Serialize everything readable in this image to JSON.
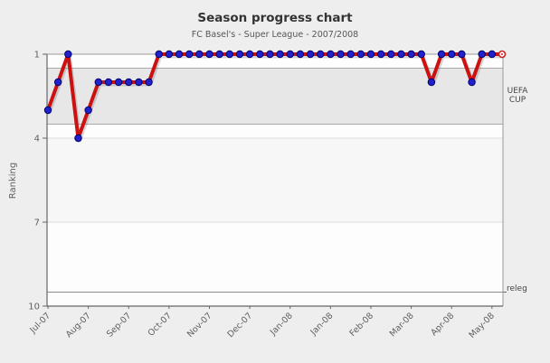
{
  "chart": {
    "title": "Season progress chart",
    "subtitle": "FC Basel's - Super League - 2007/2008",
    "y_axis_title": "Ranking",
    "zone_labels": {
      "uefa_line1": "UEFA",
      "uefa_line2": "CUP",
      "relegation": "releg"
    }
  },
  "chart_data": {
    "type": "line",
    "title": "Season progress chart",
    "subtitle": "FC Basel's - Super League - 2007/2008",
    "xlabel": "",
    "ylabel": "Ranking",
    "y_inverted": true,
    "ylim": [
      1,
      10
    ],
    "yticks": [
      1,
      4,
      7,
      10
    ],
    "xticklabels": [
      "Jul-07",
      "Aug-07",
      "Sep-07",
      "Oct-07",
      "Nov-07",
      "Dec-07",
      "Jan-08",
      "Jan-08",
      "Feb-08",
      "Mar-08",
      "Apr-08",
      "May-08"
    ],
    "xtick_interval": 4,
    "legend_position": "none",
    "grid": true,
    "x": [
      1,
      2,
      3,
      4,
      5,
      6,
      7,
      8,
      9,
      10,
      11,
      12,
      13,
      14,
      15,
      16,
      17,
      18,
      19,
      20,
      21,
      22,
      23,
      24,
      25,
      26,
      27,
      28,
      29,
      30,
      31,
      32,
      33,
      34,
      35,
      36,
      37,
      38,
      39,
      40,
      41,
      42,
      43,
      44,
      45,
      46
    ],
    "series": [
      {
        "name": "Ranking",
        "values": [
          3,
          2,
          1,
          4,
          3,
          2,
          2,
          2,
          2,
          2,
          2,
          1,
          1,
          1,
          1,
          1,
          1,
          1,
          1,
          1,
          1,
          1,
          1,
          1,
          1,
          1,
          1,
          1,
          1,
          1,
          1,
          1,
          1,
          1,
          1,
          1,
          1,
          1,
          2,
          1,
          1,
          1,
          2,
          1,
          1,
          1
        ]
      }
    ],
    "plot_bands": [
      {
        "label": "UEFA CUP",
        "from": 1.5,
        "to": 3.5,
        "color": "#e7e7e7",
        "bordered": true
      },
      {
        "label": "",
        "from": 4,
        "to": 7,
        "color": "#f7f7f7",
        "bordered": false
      }
    ],
    "plot_lines": [
      {
        "label": "releg",
        "value": 9.5
      }
    ],
    "last_point_style": "open-red-ring",
    "colors": {
      "background": "#eeeeee",
      "plot_background": "#fdfdfd",
      "line": "#cc1111",
      "marker": "#2222cc",
      "marker_border": "#000070",
      "current_marker_ring": "#cc2222",
      "band_border": "#a8a8a8",
      "grid_major": "#9a9a9a",
      "grid_minor": "#dbdbdb",
      "axis": "#666666",
      "right_border": "#999999",
      "releg_line": "#8a8a8a"
    }
  }
}
